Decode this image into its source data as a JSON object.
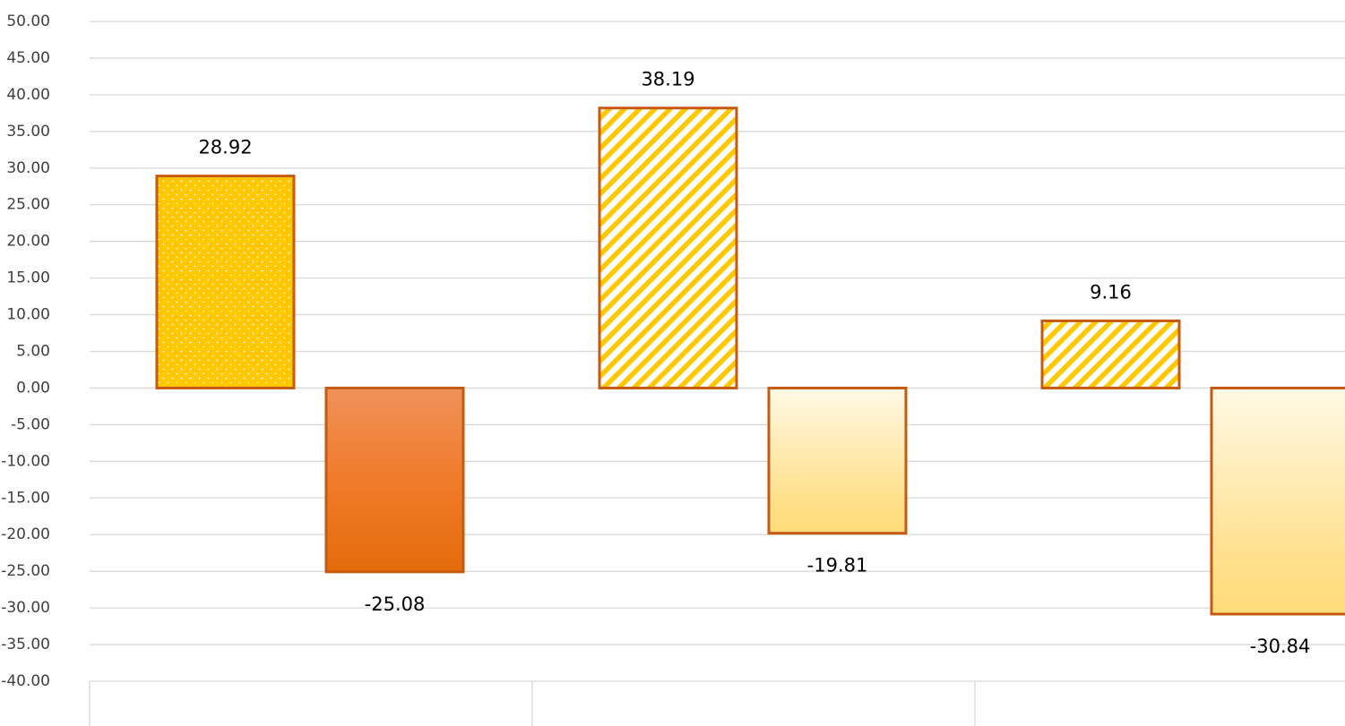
{
  "chart_data": {
    "type": "bar",
    "title": "",
    "xlabel": "",
    "ylabel": "",
    "ylim": [
      -40,
      50
    ],
    "y_tick_step": 5,
    "y_tick_labels": [
      "50.00",
      "45.00",
      "40.00",
      "35.00",
      "30.00",
      "25.00",
      "20.00",
      "15.00",
      "10.00",
      "5.00",
      "0.00",
      "-5.00",
      "-10.00",
      "-15.00",
      "-20.00",
      "-25.00",
      "-30.00",
      "-35.00",
      "-40.00"
    ],
    "grid": true,
    "legend": "none",
    "categories": [
      "",
      "",
      ""
    ],
    "series": [
      {
        "values": [
          28.92,
          38.19,
          9.16
        ],
        "labels": [
          "28.92",
          "38.19",
          "9.16"
        ]
      },
      {
        "values": [
          -25.08,
          -19.81,
          -30.84
        ],
        "labels": [
          "-25.08",
          "-19.81",
          "-30.84"
        ]
      }
    ],
    "bar_styles": [
      [
        "dotted-gold",
        "hatched-gold",
        "hatched-gold"
      ],
      [
        "orange-gradient",
        "cream-gradient",
        "cream-gradient"
      ]
    ],
    "colors": {
      "gold": "#FFC800",
      "orange": "#ED7D31",
      "orange_dark": "#E36C0A",
      "outline": "#C55A11",
      "cream_top": "#FFF9E5",
      "cream_bottom": "#FFD966",
      "grid": "#D9D9D9"
    }
  }
}
